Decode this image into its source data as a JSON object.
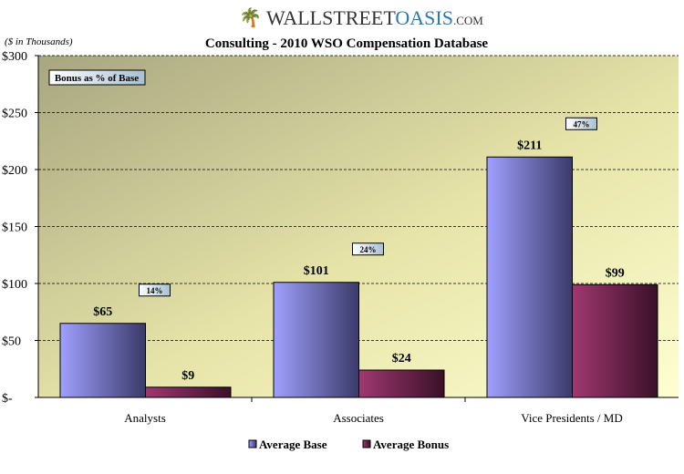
{
  "logo": {
    "text_main": "WALLSTREET",
    "text_accent": "OASIS",
    "text_suffix": ".COM"
  },
  "chart_data": {
    "type": "bar",
    "title": "Consulting - 2010 WSO Compensation Database",
    "unit_note": "($ in Thousands)",
    "annotation_label": "Bonus as % of Base",
    "categories": [
      "Analysts",
      "Associates",
      "Vice Presidents / MD"
    ],
    "series": [
      {
        "name": "Average Base",
        "values": [
          65,
          101,
          211
        ],
        "labels": [
          "$65",
          "$101",
          "$211"
        ],
        "color": "#9999ff"
      },
      {
        "name": "Average Bonus",
        "values": [
          9,
          24,
          99
        ],
        "labels": [
          "$9",
          "$24",
          "$99"
        ],
        "color": "#993366"
      }
    ],
    "bonus_pct": [
      "14%",
      "24%",
      "47%"
    ],
    "ylim": [
      0,
      300
    ],
    "yticks": [
      0,
      50,
      100,
      150,
      200,
      250,
      300
    ],
    "ytick_labels": [
      "$-",
      "$50",
      "$100",
      "$150",
      "$200",
      "$250",
      "$300"
    ],
    "grid": true,
    "legend": "bottom"
  }
}
